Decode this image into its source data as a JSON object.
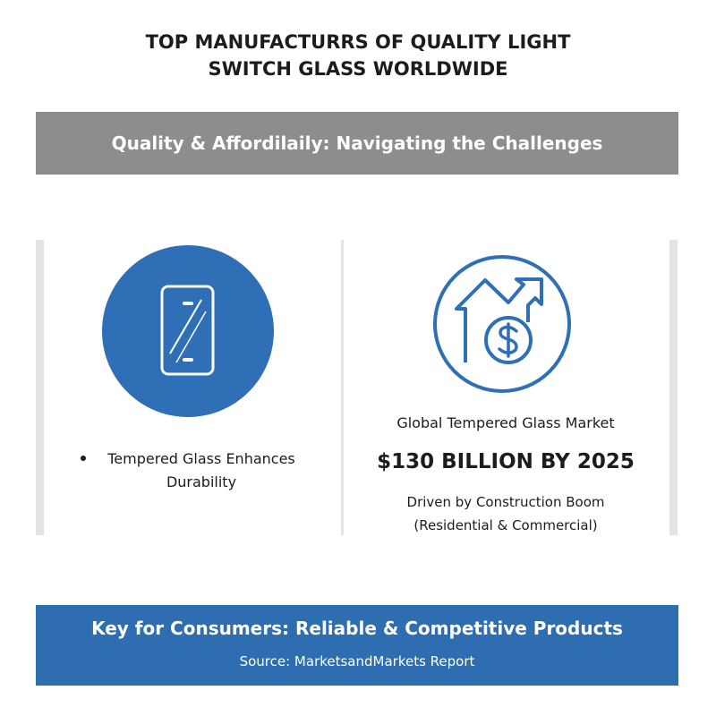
{
  "header": {
    "title_lines": [
      "TOP MANUFACTURRS OF QUALITY LIGHT",
      "SWITCH GLASS WORLDWIDE"
    ]
  },
  "banner": {
    "text": "Quality & Affordilaily: Navigating the Challenges"
  },
  "left_panel": {
    "bullet": "Tempered Glass Enhances Durability"
  },
  "right_panel": {
    "label": "Global Tempered Glass Market",
    "figure": "$130 BILLION BY 2025",
    "note_lines": [
      "Driven by Construction Boom",
      "(Residential & Commercial)"
    ]
  },
  "footer": {
    "headline": "Key for Consumers: Reliable & Competitive Products",
    "source": "Source: MarketsandMarkets Report"
  }
}
